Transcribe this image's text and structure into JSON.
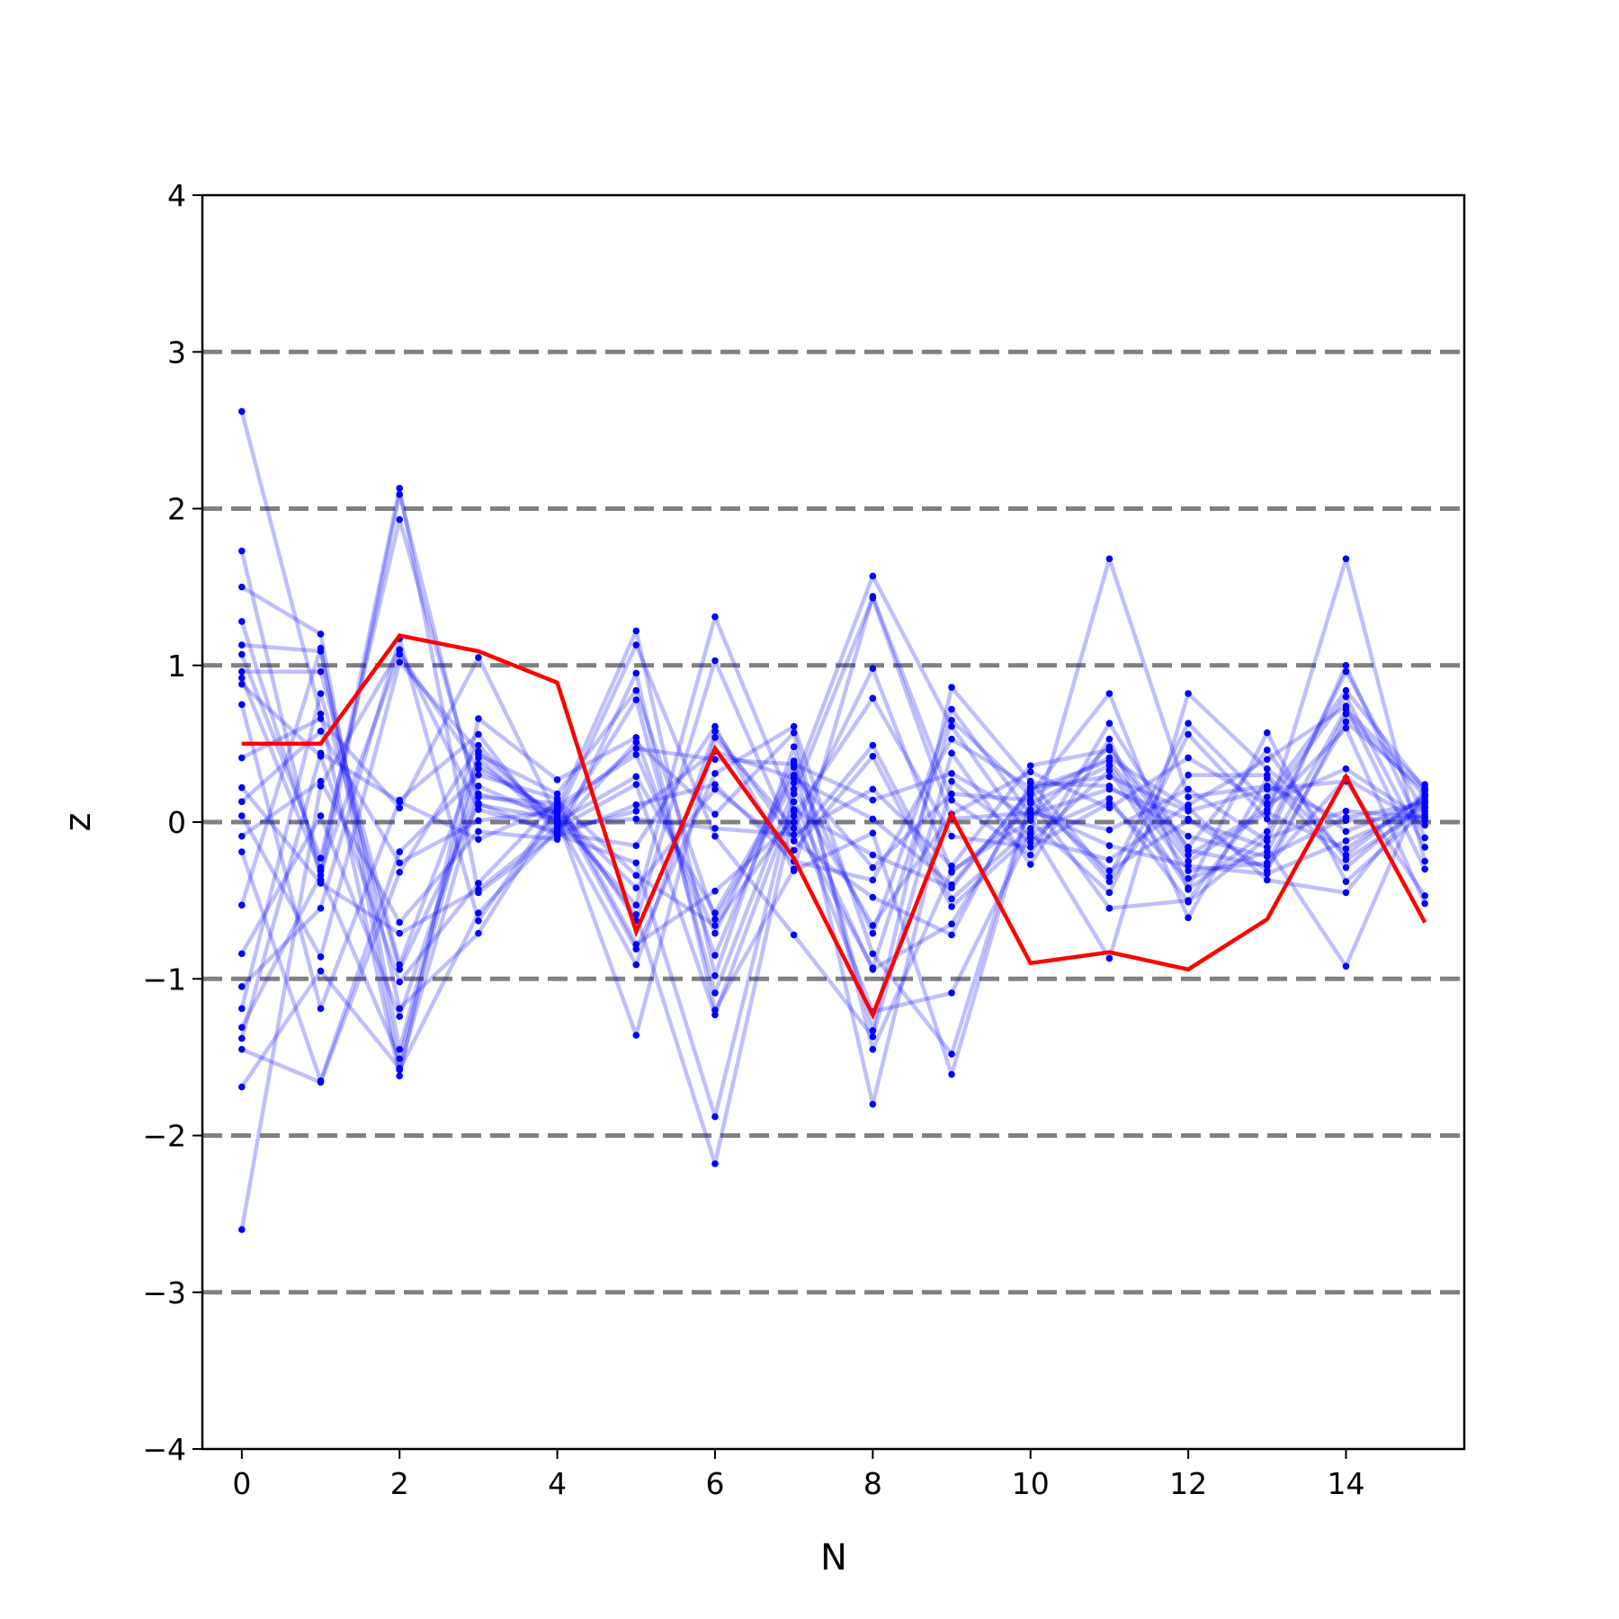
{
  "chart_data": {
    "type": "line",
    "title": "",
    "xlabel": "N",
    "ylabel": "z",
    "xlim": [
      -0.5,
      15.5
    ],
    "ylim": [
      -4,
      4
    ],
    "xticks": [
      0,
      2,
      4,
      6,
      8,
      10,
      12,
      14
    ],
    "xtick_labels": [
      "0",
      "2",
      "4",
      "6",
      "8",
      "10",
      "12",
      "14"
    ],
    "yticks": [
      -4,
      -3,
      -2,
      -1,
      0,
      1,
      2,
      3,
      4
    ],
    "ytick_labels": [
      "−4",
      "−3",
      "−2",
      "−1",
      "0",
      "1",
      "2",
      "3",
      "4"
    ],
    "reference_lines": [
      -3,
      -2,
      -1,
      0,
      1,
      2,
      3
    ],
    "colors": {
      "background_series": "#0000ff",
      "highlight_series": "#ff0000",
      "reference_lines": "#808080",
      "axes": "#000000"
    },
    "x": [
      0,
      1,
      2,
      3,
      4,
      5,
      6,
      7,
      8,
      9,
      10,
      11,
      12,
      13,
      14,
      15
    ],
    "highlight_series": {
      "values": [
        0.5,
        0.5,
        1.19,
        1.09,
        0.89,
        -0.7,
        0.47,
        -0.23,
        -1.23,
        0.05,
        -0.9,
        -0.83,
        -0.94,
        -0.62,
        0.29,
        -0.64
      ]
    },
    "series": [
      {
        "values": [
          2.62,
          0.69,
          -1.62,
          0.66,
          0.27,
          0.54,
          -0.85,
          0.35,
          -0.71,
          0.72,
          0.05,
          0.21,
          0.02,
          -0.31,
          0.69,
          0.17
        ]
      },
      {
        "values": [
          1.73,
          -0.37,
          2.09,
          0.11,
          0.02,
          -0.53,
          1.31,
          0.08,
          -0.21,
          -0.42,
          0.21,
          0.39,
          -0.25,
          0.06,
          -0.17,
          0.16
        ]
      },
      {
        "values": [
          1.5,
          1.2,
          -1.45,
          0.43,
          0.18,
          0.84,
          -0.62,
          0.25,
          1.57,
          0.61,
          -0.1,
          -0.24,
          0.11,
          0.4,
          0.74,
          -0.3
        ]
      },
      {
        "values": [
          1.28,
          -0.29,
          2.13,
          -0.45,
          -0.07,
          -0.15,
          0.61,
          -0.31,
          -0.07,
          -1.61,
          0.12,
          0.36,
          -0.31,
          -0.26,
          0.64,
          0.2
        ]
      },
      {
        "values": [
          1.13,
          1.09,
          -1.19,
          -0.71,
          0.09,
          1.22,
          -0.98,
          0.48,
          -1.33,
          0.86,
          0.26,
          -0.35,
          0.63,
          0.12,
          0.34,
          0.01
        ]
      },
      {
        "values": [
          1.07,
          -0.23,
          1.93,
          0.16,
          0.12,
          -0.63,
          1.03,
          -0.12,
          0.49,
          -0.49,
          -0.04,
          -0.87,
          0.82,
          0.34,
          -0.06,
          0.14
        ]
      },
      {
        "values": [
          0.96,
          0.96,
          -0.91,
          0.41,
          -0.04,
          0.24,
          -1.23,
          0.13,
          -0.94,
          -0.65,
          0.18,
          0.82,
          -0.43,
          -0.06,
          0.96,
          0.05
        ]
      },
      {
        "values": [
          0.92,
          -0.31,
          1.07,
          0.34,
          0.06,
          0.47,
          0.4,
          0.37,
          0.14,
          0.31,
          0.03,
          0.48,
          -0.16,
          0.46,
          -0.24,
          0.09
        ]
      },
      {
        "values": [
          0.88,
          0.42,
          -1.02,
          -0.39,
          0.14,
          -0.34,
          -0.66,
          0.04,
          0.79,
          -0.09,
          -0.16,
          0.12,
          -0.36,
          -0.19,
          0.72,
          0.22
        ]
      },
      {
        "values": [
          0.75,
          -1.19,
          0.14,
          0.56,
          -0.09,
          0.11,
          0.24,
          -0.25,
          -0.37,
          0.53,
          0.22,
          0.29,
          0.07,
          0.21,
          0.26,
          -0.47
        ]
      },
      {
        "values": [
          0.41,
          0.66,
          0.09,
          1.05,
          0.03,
          -1.36,
          0.54,
          -0.04,
          0.98,
          -0.32,
          0.08,
          -0.15,
          -0.28,
          -0.33,
          -0.12,
          0.1
        ]
      },
      {
        "values": [
          0.22,
          -0.39,
          -0.71,
          -0.43,
          -0.03,
          0.78,
          -1.09,
          0.21,
          -0.66,
          0.05,
          0.32,
          0.09,
          0.41,
          0.11,
          0.8,
          -0.16
        ]
      },
      {
        "values": [
          0.13,
          0.58,
          -0.26,
          0.01,
          0.07,
          -0.42,
          0.21,
          -0.18,
          0.42,
          -0.54,
          -0.08,
          1.68,
          0.16,
          0.23,
          0.01,
          0.03
        ]
      },
      {
        "values": [
          0.04,
          -0.86,
          1.02,
          0.45,
          0.0,
          0.29,
          -0.58,
          0.3,
          -0.29,
          0.18,
          0.14,
          -0.55,
          -0.5,
          0.16,
          0.84,
          0.21
        ]
      },
      {
        "values": [
          -0.09,
          0.26,
          -0.64,
          -0.06,
          -0.11,
          0.95,
          -1.2,
          -0.3,
          1.44,
          0.14,
          -0.21,
          0.63,
          -0.18,
          -0.28,
          0.28,
          -0.02
        ]
      },
      {
        "values": [
          -0.19,
          -1.65,
          -0.19,
          0.3,
          0.15,
          -0.78,
          -0.44,
          0.0,
          -0.93,
          0.65,
          0.17,
          0.41,
          0.09,
          -0.37,
          -0.45,
          0.17
        ]
      },
      {
        "values": [
          -0.53,
          1.11,
          -1.58,
          -0.58,
          -0.05,
          0.51,
          0.05,
          0.57,
          -1.45,
          -0.31,
          0.01,
          -0.45,
          0.56,
          0.02,
          1.68,
          -0.25
        ]
      },
      {
        "values": [
          -0.84,
          0.04,
          -1.24,
          0.23,
          0.01,
          -0.91,
          0.58,
          -0.12,
          -0.48,
          -0.72,
          0.25,
          0.23,
          -0.09,
          -0.22,
          0.03,
          0.12
        ]
      },
      {
        "values": [
          -1.05,
          -0.55,
          1.17,
          -0.63,
          0.1,
          0.43,
          -0.71,
          0.39,
          -1.8,
          0.26,
          -0.13,
          0.33,
          -0.42,
          0.57,
          -0.38,
          0.07
        ]
      },
      {
        "values": [
          -1.19,
          0.82,
          -0.94,
          0.12,
          -0.08,
          -0.26,
          -1.88,
          0.18,
          1.43,
          0.02,
          0.06,
          -0.05,
          0.21,
          -0.12,
          1.0,
          -0.1
        ]
      },
      {
        "values": [
          -1.31,
          -0.34,
          -1.51,
          0.37,
          0.04,
          1.13,
          -0.09,
          -0.72,
          -1.37,
          0.44,
          -0.27,
          0.53,
          -0.61,
          0.28,
          -0.29,
          0.13
        ]
      },
      {
        "values": [
          -1.38,
          0.44,
          0.13,
          -0.11,
          0.11,
          -0.81,
          0.31,
          0.61,
          -0.84,
          -1.48,
          0.14,
          -0.31,
          0.01,
          -0.16,
          -0.92,
          0.24
        ]
      },
      {
        "values": [
          -1.45,
          -1.66,
          -0.32,
          0.49,
          -0.02,
          0.02,
          -0.04,
          -0.08,
          0.21,
          -0.28,
          0.36,
          0.46,
          -0.21,
          0.08,
          0.6,
          -0.52
        ]
      },
      {
        "values": [
          -1.69,
          -0.95,
          -1.57,
          0.18,
          0.06,
          -0.59,
          -2.18,
          0.07,
          -1.21,
          -1.09,
          -0.07,
          0.15,
          -0.51,
          -0.1,
          0.07,
          0.03
        ]
      },
      {
        "values": [
          -2.6,
          0.23,
          1.1,
          0.08,
          -0.06,
          0.07,
          0.45,
          0.28,
          0.02,
          -0.4,
          0.2,
          -0.38,
          0.3,
          0.3,
          -0.21,
          0.18
        ]
      }
    ]
  }
}
